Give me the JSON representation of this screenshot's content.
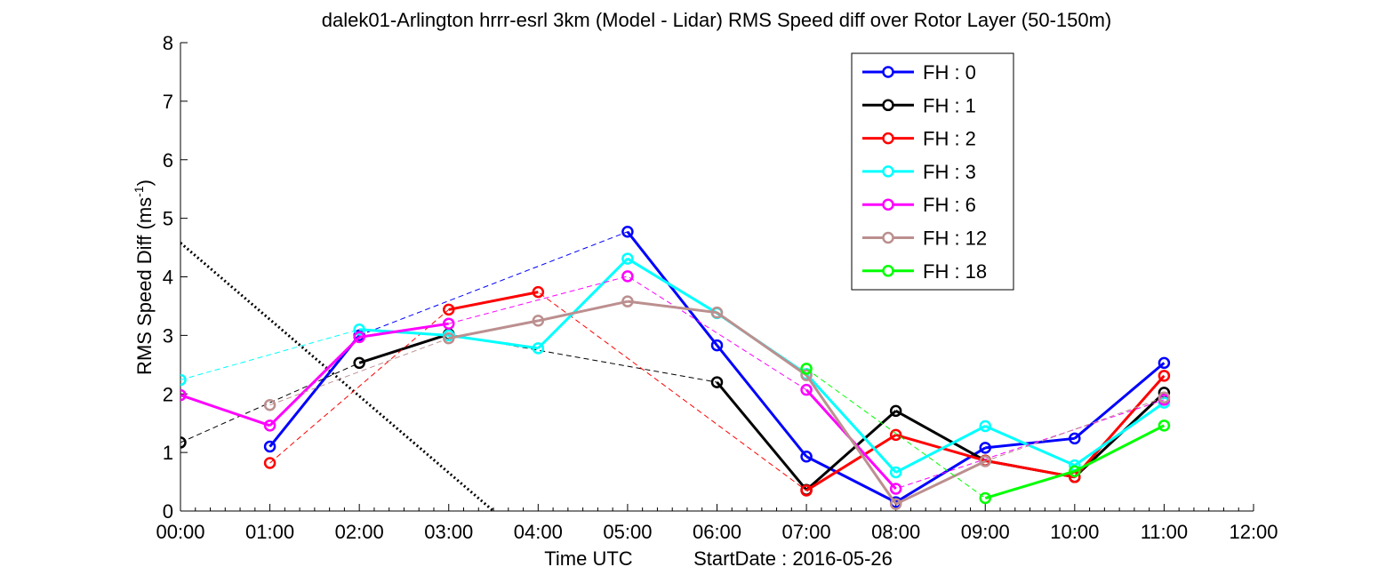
{
  "chart_data": {
    "type": "line",
    "title": "dalek01-Arlington hrrr-esrl 3km (Model - Lidar) RMS Speed diff over Rotor Layer (50-150m)",
    "ylabel": "RMS Speed Diff (ms",
    "ylabel_sup": "-1",
    "ylabel_close": ")",
    "xlabel": "Time UTC",
    "xlabel_extra": "StartDate : 2016-05-26",
    "ylim": [
      0,
      8
    ],
    "xlim": [
      0,
      12
    ],
    "yticks": [
      "0",
      "1",
      "2",
      "3",
      "4",
      "5",
      "6",
      "7",
      "8"
    ],
    "xticks": [
      "00:00",
      "01:00",
      "02:00",
      "03:00",
      "04:00",
      "05:00",
      "06:00",
      "07:00",
      "08:00",
      "09:00",
      "10:00",
      "11:00",
      "12:00"
    ],
    "x_units": "hours",
    "legend_placement": "top-right",
    "series": [
      {
        "name": "FH : 0",
        "color": "#0000ff",
        "points": [
          [
            1,
            1.1
          ],
          [
            2,
            3.0
          ],
          [
            5,
            4.77
          ],
          [
            6,
            2.83
          ],
          [
            7,
            0.93
          ],
          [
            8,
            0.15
          ],
          [
            9,
            1.08
          ],
          [
            10,
            1.24
          ],
          [
            11,
            2.53
          ]
        ]
      },
      {
        "name": "FH : 1",
        "color": "#000000",
        "points": [
          [
            0,
            1.17
          ],
          [
            2,
            2.53
          ],
          [
            3,
            3.02
          ],
          [
            6,
            2.2
          ],
          [
            7,
            0.36
          ],
          [
            8,
            1.71
          ],
          [
            9,
            0.86
          ],
          [
            10,
            0.58
          ],
          [
            11,
            2.02
          ]
        ]
      },
      {
        "name": "FH : 2",
        "color": "#ff0000",
        "points": [
          [
            1,
            0.82
          ],
          [
            3,
            3.44
          ],
          [
            4,
            3.74
          ],
          [
            7,
            0.35
          ],
          [
            8,
            1.3
          ],
          [
            9,
            0.86
          ],
          [
            10,
            0.58
          ],
          [
            11,
            2.31
          ]
        ]
      },
      {
        "name": "FH : 3",
        "color": "#00ffff",
        "points": [
          [
            0,
            2.24
          ],
          [
            2,
            3.1
          ],
          [
            3,
            3.0
          ],
          [
            4,
            2.78
          ],
          [
            5,
            4.31
          ],
          [
            6,
            3.38
          ],
          [
            7,
            2.34
          ],
          [
            8,
            0.66
          ],
          [
            9,
            1.45
          ],
          [
            10,
            0.78
          ],
          [
            11,
            1.85
          ]
        ]
      },
      {
        "name": "FH : 6",
        "color": "#ff00ff",
        "points": [
          [
            0,
            1.98
          ],
          [
            1,
            1.46
          ],
          [
            2,
            2.97
          ],
          [
            3,
            3.2
          ],
          [
            5,
            4.01
          ],
          [
            7,
            2.07
          ],
          [
            8,
            0.38
          ],
          [
            11,
            1.9
          ]
        ]
      },
      {
        "name": "FH : 12",
        "color": "#bc8f8f",
        "points": [
          [
            1,
            1.81
          ],
          [
            3,
            2.95
          ],
          [
            4,
            3.25
          ],
          [
            5,
            3.58
          ],
          [
            6,
            3.39
          ],
          [
            7,
            2.32
          ],
          [
            8,
            0.12
          ],
          [
            9,
            0.85
          ],
          [
            11,
            1.94
          ]
        ]
      },
      {
        "name": "FH : 18",
        "color": "#00ff00",
        "points": [
          [
            7,
            2.43
          ],
          [
            9,
            0.22
          ],
          [
            10,
            0.68
          ],
          [
            11,
            1.46
          ]
        ]
      }
    ],
    "reference_line": {
      "style": "dotted",
      "color": "#000000",
      "points": [
        [
          0,
          4.58
        ],
        [
          3.5,
          0
        ]
      ]
    }
  }
}
